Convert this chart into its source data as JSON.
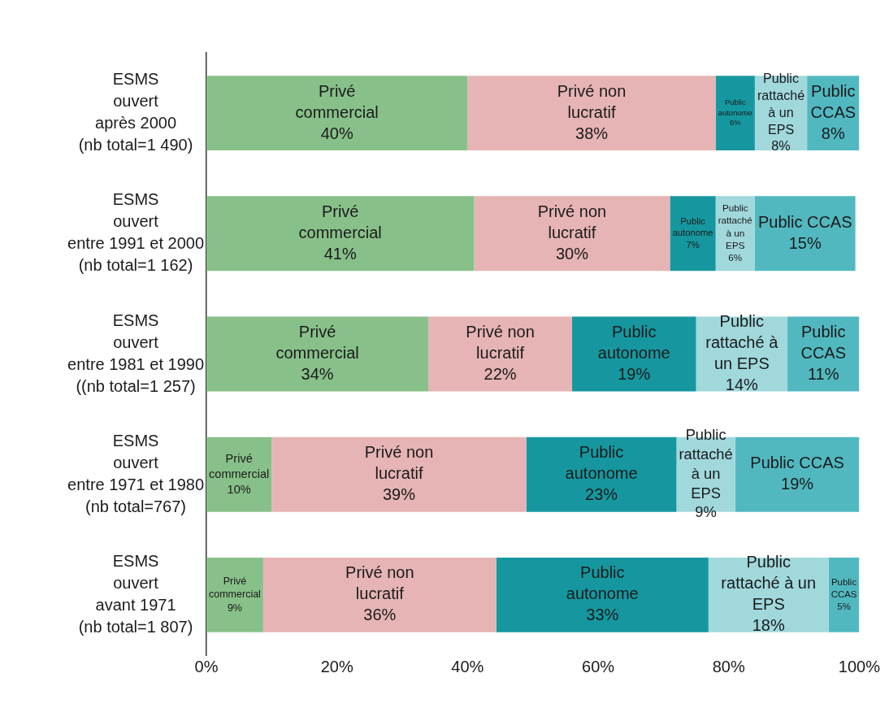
{
  "chart_data": {
    "type": "bar",
    "orientation": "horizontal",
    "stacked": true,
    "categories": [
      "ESMS\nouvert\naprès 2000\n(nb total=1 490)",
      "ESMS\nouvert\nentre 1991 et 2000\n(nb total=1 162)",
      "ESMS\nouvert\nentre 1981 et 1990\n((nb total=1 257)",
      "ESMS\nouvert\nentre 1971 et 1980\n(nb total=767)",
      "ESMS\nouvert\navant 1971\n(nb total=1 807)"
    ],
    "series": [
      {
        "name": "Privé commercial",
        "color": "#88c08a",
        "values": [
          40,
          41,
          34,
          10,
          8.7
        ],
        "value_labels": [
          "40%",
          "41%",
          "34%",
          "10%",
          "9%"
        ]
      },
      {
        "name": "Privé non lucratif",
        "color": "#e6b4b4",
        "values": [
          38,
          30,
          22,
          39,
          35.7
        ],
        "value_labels": [
          "38%",
          "30%",
          "22%",
          "39%",
          "36%"
        ]
      },
      {
        "name": "Public autonome",
        "color": "#16979f",
        "values": [
          6,
          7,
          19,
          23,
          32.5
        ],
        "value_labels": [
          "6%",
          "7%",
          "19%",
          "23%",
          "33%"
        ]
      },
      {
        "name": "Public rattaché à un EPS",
        "color": "#a0d8dc",
        "values": [
          8,
          6,
          14,
          9,
          18.4
        ],
        "value_labels": [
          "8%",
          "6%",
          "14%",
          "9%",
          "18%"
        ]
      },
      {
        "name": "Public CCAS",
        "color": "#52b8c0",
        "values": [
          8,
          15.4,
          11,
          19,
          4.7
        ],
        "value_labels": [
          "8%",
          "15%",
          "11%",
          "19%",
          "5%"
        ]
      }
    ],
    "xlim": [
      0,
      100
    ],
    "xticks": [
      {
        "value": 0,
        "label": "0%"
      },
      {
        "value": 20,
        "label": "20%"
      },
      {
        "value": 40,
        "label": "40%"
      },
      {
        "value": 60,
        "label": "60%"
      },
      {
        "value": 80,
        "label": "80%"
      },
      {
        "value": 100,
        "label": "100%"
      }
    ],
    "grid": false,
    "legend": false
  }
}
